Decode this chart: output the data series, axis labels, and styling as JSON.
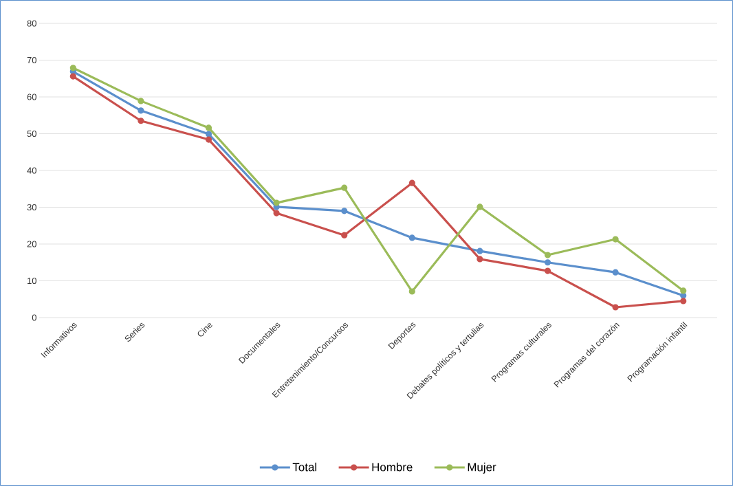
{
  "chart_data": {
    "type": "line",
    "categories": [
      "Informativos",
      "Series",
      "Cine",
      "Documentales",
      "Entretenimiento/Concursos",
      "Deportes",
      "Debates políticos y tertulias",
      "Programas culturales",
      "Programas del corazón",
      "Programación infantil"
    ],
    "series": [
      {
        "name": "Total",
        "color": "#5b8fcc",
        "values": [
          66.9,
          56.3,
          49.9,
          30.1,
          29.0,
          21.7,
          18.1,
          15.0,
          12.3,
          6.0
        ]
      },
      {
        "name": "Hombre",
        "color": "#c9504d",
        "values": [
          65.6,
          53.5,
          48.4,
          28.4,
          22.4,
          36.6,
          15.9,
          12.7,
          2.8,
          4.5
        ]
      },
      {
        "name": "Mujer",
        "color": "#9bbb59",
        "values": [
          67.9,
          58.9,
          51.6,
          31.2,
          35.3,
          7.1,
          30.1,
          17.0,
          21.3,
          7.3
        ]
      }
    ],
    "ylim": [
      0,
      80
    ],
    "yticks": [
      0,
      10,
      20,
      30,
      40,
      50,
      60,
      70,
      80
    ],
    "grid": "y",
    "legend": "bottom",
    "marker": "circle",
    "line_style": "solid"
  }
}
